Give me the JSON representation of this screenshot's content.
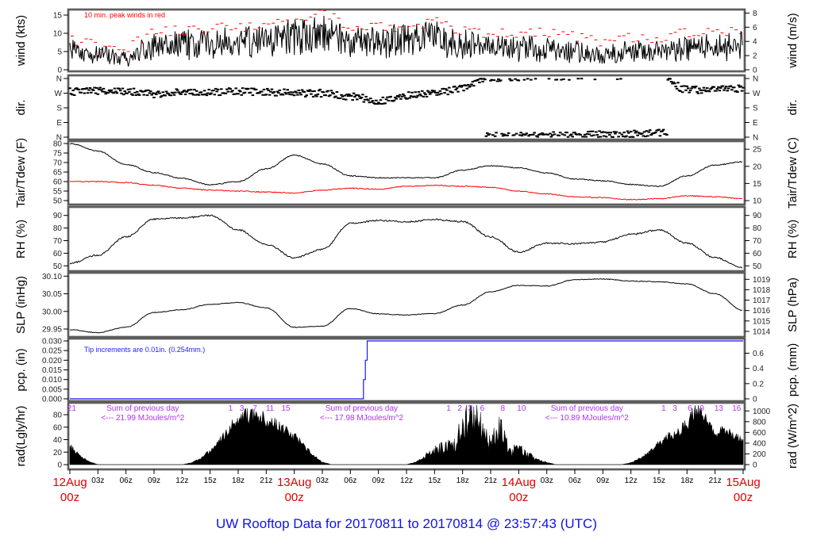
{
  "title": "UW Rooftop Data for 20170811  to  20170814 @ 23:57:43  (UTC)",
  "colors": {
    "line": "#000000",
    "dewpoint": "#ff0000",
    "gust": "#ff0000",
    "precip": "#1a1aff",
    "annotation": "#b030f0",
    "date": "#e00000",
    "title": "#1010f0"
  },
  "x_axis": {
    "step_hours": 3,
    "ticks": [
      "00z",
      "03z",
      "06z",
      "09z",
      "12z",
      "15z",
      "18z",
      "21z",
      "00z",
      "03z",
      "06z",
      "09z",
      "12z",
      "15z",
      "18z",
      "21z",
      "00z",
      "03z",
      "06z",
      "09z",
      "12z",
      "15z",
      "18z",
      "21z",
      "00z"
    ],
    "dates": [
      {
        "hour": 0,
        "day": "12Aug",
        "time": "00z"
      },
      {
        "hour": 24,
        "day": "13Aug",
        "time": "00z"
      },
      {
        "hour": 48,
        "day": "14Aug",
        "time": "00z"
      },
      {
        "hour": 72,
        "day": "15Aug",
        "time": "00z"
      }
    ]
  },
  "chart_data": [
    {
      "id": "wind",
      "type": "line",
      "ylabel": "wind (kts)",
      "ylabel_right": "wind (m/s)",
      "yticks": [
        "0",
        "5",
        "10",
        "15"
      ],
      "yticks_right": [
        "0",
        "2",
        "4",
        "6",
        "8"
      ],
      "right_scale": 1.944,
      "right_offset": 0,
      "note": "10 min. peak winds in red",
      "series": [
        {
          "name": "wind speed (kts), 3-hourly mean",
          "values": [
            5,
            4,
            3,
            6.5,
            7,
            7,
            7.5,
            8,
            9,
            10,
            8,
            8,
            8,
            9,
            7,
            6,
            6,
            6,
            5,
            4,
            5,
            5,
            6,
            6,
            7
          ]
        },
        {
          "name": "10 min. peak winds",
          "values": [
            8,
            7,
            6,
            10,
            11,
            11,
            12,
            12,
            13,
            15,
            12,
            12,
            12,
            13,
            11,
            10,
            10,
            10,
            9,
            8,
            9,
            9,
            10,
            10,
            11
          ]
        }
      ]
    },
    {
      "id": "dir",
      "type": "scatter",
      "ylabel": "dir.",
      "ylabel_right": "dir.",
      "yticks": [
        "N",
        "E",
        "S",
        "W",
        "N"
      ],
      "ytick_values": [
        0,
        90,
        180,
        270,
        360
      ],
      "yticks_right": [
        "N",
        "E",
        "S",
        "W",
        "N"
      ],
      "series": [
        {
          "name": "wind direction (deg), 3-hourly",
          "values": [
            280,
            285,
            280,
            265,
            275,
            275,
            280,
            275,
            270,
            270,
            250,
            225,
            255,
            270,
            300,
            5,
            10,
            10,
            10,
            15,
            20,
            30,
            290,
            290,
            300
          ]
        }
      ]
    },
    {
      "id": "tair",
      "type": "line",
      "ylabel": "Tair/Tdew (F)",
      "ylabel_right": "Tair/Tdew (C)",
      "yticks": [
        "50",
        "55",
        "60",
        "65",
        "70",
        "75",
        "80"
      ],
      "yticks_right": [
        "10",
        "15",
        "20",
        "25"
      ],
      "right_scale": 1.8,
      "right_offset": 32,
      "series": [
        {
          "name": "Tair (F)",
          "values": [
            80,
            76,
            69,
            64.7,
            61.7,
            58.3,
            60,
            66.7,
            73.9,
            69.3,
            63,
            62,
            62,
            62,
            66,
            68.3,
            67.2,
            64.5,
            61.4,
            60.4,
            58.5,
            57.5,
            63,
            68.7,
            70.4
          ]
        },
        {
          "name": "Tdew (F)",
          "values": [
            60,
            60,
            59.5,
            58,
            56.5,
            55.5,
            55,
            54.5,
            54,
            55.5,
            56.5,
            56,
            57.5,
            58,
            57.5,
            57,
            55,
            53.5,
            52,
            51.5,
            50.5,
            51,
            52.5,
            52,
            51
          ]
        }
      ]
    },
    {
      "id": "rh",
      "type": "line",
      "ylabel": "RH (%)",
      "ylabel_right": "RH (%)",
      "yticks": [
        "50",
        "60",
        "70",
        "80",
        "90"
      ],
      "yticks_right": [
        "50",
        "60",
        "70",
        "80",
        "90"
      ],
      "right_scale": 1,
      "right_offset": 0,
      "series": [
        {
          "name": "RH (%)",
          "values": [
            52,
            58.5,
            73,
            87,
            88,
            90,
            78.5,
            67,
            56.5,
            63,
            83.7,
            86,
            85,
            86.7,
            85,
            73,
            61,
            68,
            67.5,
            69,
            75,
            78.5,
            68,
            56.5,
            48.5
          ]
        }
      ]
    },
    {
      "id": "slp",
      "type": "line",
      "ylabel": "SLP (inHg)",
      "ylabel_right": "SLP (hPa)",
      "yticks": [
        "29.95",
        "30.00",
        "30.05",
        "30.10"
      ],
      "yticks_right": [
        "1014",
        "1015",
        "1016",
        "1017",
        "1018",
        "1019"
      ],
      "right_scale": 0.02953,
      "right_offset": 0,
      "series": [
        {
          "name": "SLP (inHg)",
          "values": [
            29.948,
            29.94,
            29.955,
            29.997,
            30.005,
            30.02,
            30.025,
            30.01,
            29.955,
            29.958,
            30.008,
            29.993,
            29.99,
            29.994,
            30.018,
            30.056,
            30.074,
            30.072,
            30.09,
            30.092,
            30.086,
            30.084,
            30.078,
            30.05,
            30.003
          ]
        }
      ]
    },
    {
      "id": "pcp",
      "type": "line",
      "ylabel": "pcp. (in)",
      "ylabel_right": "pcp. (mm)",
      "yticks": [
        "0.000",
        "0.005",
        "0.010",
        "0.015",
        "0.020",
        "0.025",
        "0.030"
      ],
      "yticks_right": [
        "0",
        "0.2",
        "0.4",
        "0.6"
      ],
      "right_scale": 0.03937,
      "right_offset": 0,
      "note": "Tip increments are 0.01in. (0.254mm.)",
      "series": [
        {
          "name": "cumulative precip (in)",
          "points": [
            [
              0,
              0
            ],
            [
              31.4,
              0
            ],
            [
              31.4,
              0.01
            ],
            [
              31.6,
              0.01
            ],
            [
              31.6,
              0.02
            ],
            [
              31.8,
              0.02
            ],
            [
              31.8,
              0.03
            ],
            [
              72,
              0.03
            ]
          ]
        }
      ]
    },
    {
      "id": "rad",
      "type": "area",
      "ylabel": "rad(Lgly/hr)",
      "ylabel_right": "rad (W/m^2)",
      "yticks": [
        "0",
        "20",
        "40",
        "60",
        "80"
      ],
      "yticks_right": [
        "0",
        "200",
        "400",
        "600",
        "800",
        "1000"
      ],
      "right_scale": 0.086,
      "right_offset": 0,
      "series": [
        {
          "name": "radiation (Lgly/hr), hourly",
          "values": [
            30,
            15,
            5,
            0,
            0,
            0,
            0,
            0,
            0,
            0,
            0,
            0,
            0,
            3,
            10,
            22,
            38,
            55,
            72,
            78,
            76,
            72,
            65,
            55,
            45,
            30,
            15,
            4,
            0,
            0,
            0,
            0,
            0,
            0,
            0,
            0,
            0,
            4,
            12,
            20,
            28,
            30,
            55,
            85,
            60,
            30,
            60,
            20,
            25,
            15,
            8,
            3,
            0,
            0,
            0,
            0,
            0,
            0,
            0,
            0,
            3,
            10,
            20,
            35,
            45,
            50,
            65,
            90,
            70,
            50,
            55,
            45,
            40
          ]
        }
      ],
      "hour_marks": [
        {
          "hour": 0.2,
          "label": "21"
        },
        {
          "hour": 17.2,
          "label": "1"
        },
        {
          "hour": 18.4,
          "label": "3"
        },
        {
          "hour": 19.8,
          "label": "7"
        },
        {
          "hour": 21.4,
          "label": "11"
        },
        {
          "hour": 23.1,
          "label": "15"
        },
        {
          "hour": 40.5,
          "label": "1"
        },
        {
          "hour": 41.7,
          "label": "2"
        },
        {
          "hour": 42.8,
          "label": "3"
        },
        {
          "hour": 44.1,
          "label": "6"
        },
        {
          "hour": 46.3,
          "label": "8"
        },
        {
          "hour": 48.3,
          "label": "10"
        },
        {
          "hour": 63.5,
          "label": "1"
        },
        {
          "hour": 64.7,
          "label": "3"
        },
        {
          "hour": 66.3,
          "label": "6"
        },
        {
          "hour": 67.6,
          "label": "9"
        },
        {
          "hour": 69.4,
          "label": "13"
        },
        {
          "hour": 71.3,
          "label": "16"
        }
      ],
      "daily_sums": [
        {
          "hour": 7.8,
          "heading": "Sum of previous day",
          "value": "<--- 21.99 MJoules/m^2"
        },
        {
          "hour": 31.2,
          "heading": "Sum of previous day",
          "value": "<--- 17.98 MJoules/m^2"
        },
        {
          "hour": 55.3,
          "heading": "Sum of previous day",
          "value": "<--- 10.89 MJoules/m^2"
        }
      ]
    }
  ]
}
